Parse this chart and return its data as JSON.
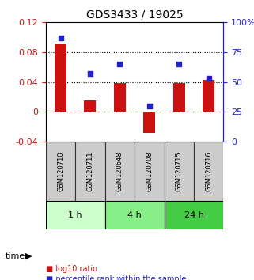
{
  "title": "GDS3433 / 19025",
  "samples": [
    "GSM120710",
    "GSM120711",
    "GSM120648",
    "GSM120708",
    "GSM120715",
    "GSM120716"
  ],
  "log10_ratio": [
    0.092,
    0.015,
    0.038,
    -0.028,
    0.038,
    0.043
  ],
  "percentile_rank": [
    87,
    57,
    65,
    30,
    65,
    53
  ],
  "groups": [
    {
      "label": "1 h",
      "indices": [
        0,
        1
      ],
      "color": "#ccffcc"
    },
    {
      "label": "4 h",
      "indices": [
        2,
        3
      ],
      "color": "#88ee88"
    },
    {
      "label": "24 h",
      "indices": [
        4,
        5
      ],
      "color": "#44cc44"
    }
  ],
  "bar_color": "#cc1111",
  "dot_color": "#2222cc",
  "left_ylim": [
    -0.04,
    0.12
  ],
  "right_ylim": [
    0,
    100
  ],
  "left_yticks": [
    -0.04,
    0,
    0.04,
    0.08,
    0.12
  ],
  "right_yticks": [
    0,
    25,
    50,
    75,
    100
  ],
  "hline_y_left": [
    0.04,
    0.08
  ],
  "zero_line_y": 0,
  "sample_box_color": "#cccccc",
  "sample_box_edge_color": "#333333",
  "time_label": "time",
  "legend_items": [
    {
      "label": "log10 ratio",
      "color": "#cc1111"
    },
    {
      "label": "percentile rank within the sample",
      "color": "#2222cc"
    }
  ]
}
